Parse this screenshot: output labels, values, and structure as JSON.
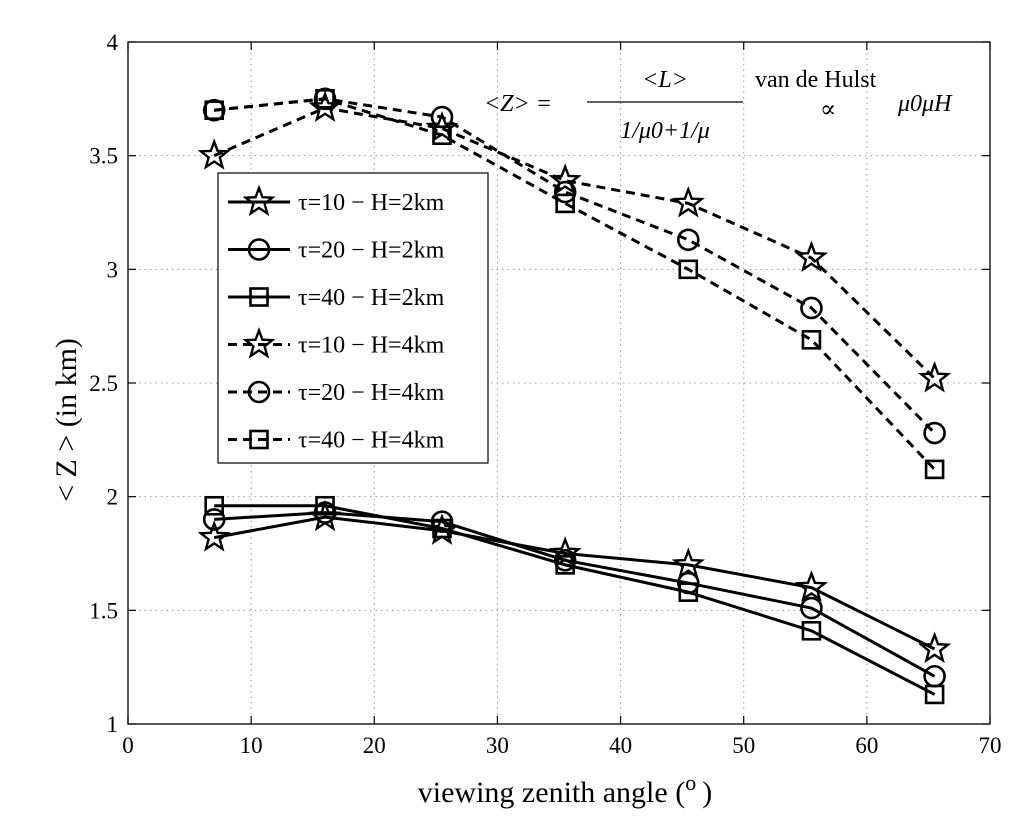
{
  "chart_data": {
    "type": "line",
    "xlabel": "viewing zenith angle (",
    "xlabel_sup": "o",
    "xlabel_close": ")",
    "ylabel": "< Z > (in km)",
    "xlim": [
      0,
      70
    ],
    "ylim": [
      1,
      4
    ],
    "xticks": [
      0,
      10,
      20,
      30,
      40,
      50,
      60,
      70
    ],
    "yticks": [
      1,
      1.5,
      2,
      2.5,
      3,
      3.5,
      4
    ],
    "ytick_labels": [
      "1",
      "1.5",
      "2",
      "2.5",
      "3",
      "3.5",
      "4"
    ],
    "grid": true,
    "legend_position": "upper-left",
    "annotation": {
      "lhs": "<Z> =",
      "numerator": "<L>",
      "denominator": "1/μ0+1/μ",
      "label": "van de Hulst",
      "proportional": "∝",
      "rhs": "μ0μH"
    },
    "x": [
      7,
      16,
      25.5,
      35.5,
      45.5,
      55.5,
      65.5
    ],
    "series": [
      {
        "name": "τ=10 − H=2km",
        "marker": "star",
        "dash": "solid",
        "values": [
          1.82,
          1.91,
          1.85,
          1.75,
          1.7,
          1.6,
          1.33
        ]
      },
      {
        "name": "τ=20 − H=2km",
        "marker": "circle",
        "dash": "solid",
        "values": [
          1.9,
          1.93,
          1.89,
          1.72,
          1.62,
          1.51,
          1.21
        ]
      },
      {
        "name": "τ=40 − H=2km",
        "marker": "square",
        "dash": "solid",
        "values": [
          1.96,
          1.96,
          1.86,
          1.7,
          1.58,
          1.41,
          1.13
        ]
      },
      {
        "name": "τ=10 − H=4km",
        "marker": "star",
        "dash": "dashed",
        "values": [
          3.5,
          3.71,
          3.62,
          3.39,
          3.29,
          3.05,
          2.52
        ]
      },
      {
        "name": "τ=20 − H=4km",
        "marker": "circle",
        "dash": "dashed",
        "values": [
          3.7,
          3.75,
          3.67,
          3.34,
          3.13,
          2.83,
          2.28
        ]
      },
      {
        "name": "τ=40 − H=4km",
        "marker": "square",
        "dash": "dashed",
        "values": [
          3.7,
          3.75,
          3.59,
          3.29,
          3.0,
          2.69,
          2.12
        ]
      }
    ]
  }
}
